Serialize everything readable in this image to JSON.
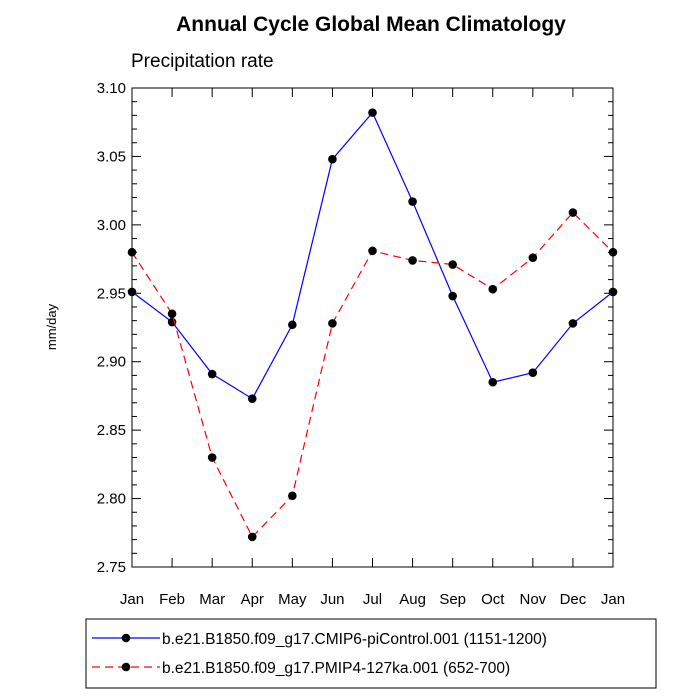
{
  "chart_data": {
    "type": "line",
    "title": "Annual Cycle Global Mean Climatology",
    "subtitle": "Precipitation rate",
    "ylabel": "mm/day",
    "xlabel": "",
    "categories": [
      "Jan",
      "Feb",
      "Mar",
      "Apr",
      "May",
      "Jun",
      "Jul",
      "Aug",
      "Sep",
      "Oct",
      "Nov",
      "Dec",
      "Jan"
    ],
    "ylim": [
      2.75,
      3.1
    ],
    "yticks": [
      "2.75",
      "2.80",
      "2.85",
      "2.90",
      "2.95",
      "3.00",
      "3.05",
      "3.10"
    ],
    "grid": false,
    "legend_position": "bottom",
    "series": [
      {
        "name": "b.e21.B1850.f09_g17.CMIP6-piControl.001 (1151-1200)",
        "color": "#0000ff",
        "line_style": "solid",
        "marker": "filled-circle",
        "values": [
          2.951,
          2.929,
          2.891,
          2.873,
          2.927,
          3.048,
          3.082,
          3.017,
          2.948,
          2.885,
          2.892,
          2.928,
          2.951
        ]
      },
      {
        "name": "b.e21.B1850.f09_g17.PMIP4-127ka.001 (652-700)",
        "color": "#ff0000",
        "line_style": "dashed",
        "marker": "filled-circle",
        "values": [
          2.98,
          2.935,
          2.83,
          2.772,
          2.802,
          2.928,
          2.981,
          2.974,
          2.971,
          2.953,
          2.976,
          3.009,
          2.98
        ]
      }
    ]
  }
}
